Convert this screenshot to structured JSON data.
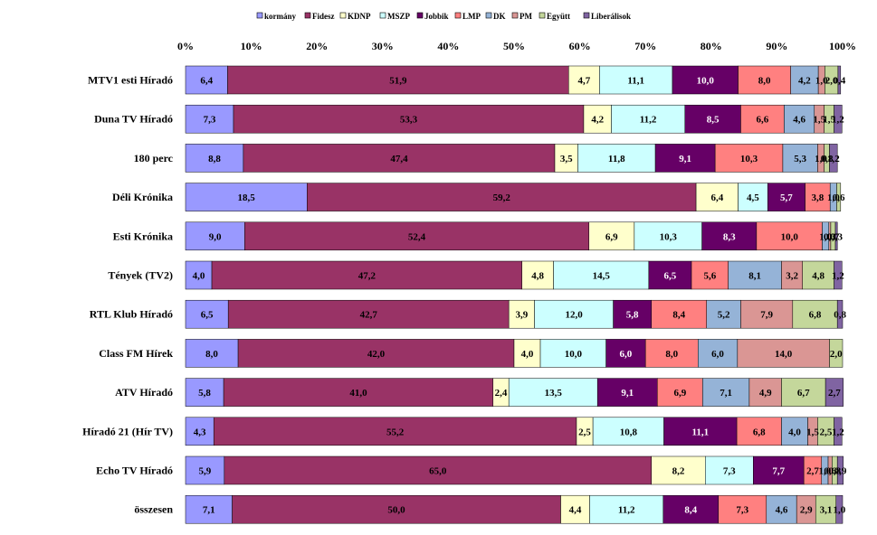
{
  "chart_data": {
    "type": "bar",
    "orientation": "horizontal",
    "stacked": "percent",
    "xlim": [
      0,
      100
    ],
    "tick_labels": [
      "0%",
      "10%",
      "20%",
      "30%",
      "40%",
      "50%",
      "60%",
      "70%",
      "80%",
      "90%",
      "100%"
    ],
    "legend_position": "top",
    "grid": false,
    "categories": [
      "MTV1 esti Híradó",
      "Duna TV Híradó",
      "180 perc",
      "Déli Krónika",
      "Esti Krónika",
      "Tények (TV2)",
      "RTL Klub Híradó",
      "Class FM Hírek",
      "ATV Híradó",
      "Híradó 21 (Hír TV)",
      "Echo TV Híradó",
      "összesen"
    ],
    "series": [
      {
        "name": "kormány",
        "color": "#9999ff",
        "text_color": "#000000",
        "values": [
          6.4,
          7.3,
          8.8,
          18.5,
          9.0,
          4.0,
          6.5,
          8.0,
          5.8,
          4.3,
          5.9,
          7.1
        ],
        "labels": [
          "6,4",
          "7,3",
          "8,8",
          "18,5",
          "9,0",
          "4,0",
          "6,5",
          "8,0",
          "5,8",
          "4,3",
          "5,9",
          "7,1"
        ]
      },
      {
        "name": "Fidesz",
        "color": "#993366",
        "text_color": "#000000",
        "values": [
          51.9,
          53.3,
          47.4,
          59.2,
          52.4,
          47.2,
          42.7,
          42.0,
          41.0,
          55.2,
          65.0,
          50.0
        ],
        "labels": [
          "51,9",
          "53,3",
          "47,4",
          "59,2",
          "52,4",
          "47,2",
          "42,7",
          "42,0",
          "41,0",
          "55,2",
          "65,0",
          "50,0"
        ]
      },
      {
        "name": "KDNP",
        "color": "#ffffcc",
        "text_color": "#000000",
        "values": [
          4.7,
          4.2,
          3.5,
          6.4,
          6.9,
          4.8,
          3.9,
          4.0,
          2.4,
          2.5,
          8.2,
          4.4
        ],
        "labels": [
          "4,7",
          "4,2",
          "3,5",
          "6,4",
          "6,9",
          "4,8",
          "3,9",
          "4,0",
          "2,4",
          "2,5",
          "8,2",
          "4,4"
        ]
      },
      {
        "name": "MSZP",
        "color": "#ccffff",
        "text_color": "#000000",
        "values": [
          11.1,
          11.2,
          11.8,
          4.5,
          10.3,
          14.5,
          12.0,
          10.0,
          13.5,
          10.8,
          7.3,
          11.2
        ],
        "labels": [
          "11,1",
          "11,2",
          "11,8",
          "4,5",
          "10,3",
          "14,5",
          "12,0",
          "10,0",
          "13,5",
          "10,8",
          "7,3",
          "11,2"
        ]
      },
      {
        "name": "Jobbik",
        "color": "#660066",
        "text_color": "#ffffff",
        "values": [
          10.0,
          8.5,
          9.1,
          5.7,
          8.3,
          6.5,
          5.8,
          6.0,
          9.1,
          11.1,
          7.7,
          8.4
        ],
        "labels": [
          "10,0",
          "8,5",
          "9,1",
          "5,7",
          "8,3",
          "6,5",
          "5,8",
          "6,0",
          "9,1",
          "11,1",
          "7,7",
          "8,4"
        ]
      },
      {
        "name": "LMP",
        "color": "#ff8080",
        "text_color": "#000000",
        "values": [
          8.0,
          6.6,
          10.3,
          3.8,
          10.0,
          5.6,
          8.4,
          8.0,
          6.9,
          6.8,
          2.7,
          7.3
        ],
        "labels": [
          "8,0",
          "6,6",
          "10,3",
          "3,8",
          "10,0",
          "5,6",
          "8,4",
          "8,0",
          "6,9",
          "6,8",
          "2,7",
          "7,3"
        ]
      },
      {
        "name": "DK",
        "color": "#95b3d7",
        "text_color": "#000000",
        "values": [
          4.2,
          4.6,
          5.3,
          1.0,
          1.0,
          8.1,
          5.2,
          6.0,
          7.1,
          4.0,
          1.0,
          4.6
        ],
        "labels": [
          "4,2",
          "4,6",
          "5,3",
          "1,0",
          "1,0",
          "8,1",
          "5,2",
          "6,0",
          "7,1",
          "4,0",
          "1,0",
          "4,6"
        ]
      },
      {
        "name": "PM",
        "color": "#da9694",
        "text_color": "#000000",
        "values": [
          1.0,
          1.5,
          1.0,
          0.0,
          0.3,
          3.2,
          7.9,
          14.0,
          4.9,
          1.5,
          0.6,
          2.9
        ],
        "labels": [
          "1,0",
          "1,5",
          "1,0",
          "0,0",
          "0,3",
          "3,2",
          "7,9",
          "14,0",
          "4,9",
          "1,5",
          "0,6",
          "2,9"
        ]
      },
      {
        "name": "Együtt",
        "color": "#c4d79b",
        "text_color": "#000000",
        "values": [
          2.0,
          1.5,
          0.8,
          0.6,
          0.7,
          4.8,
          6.8,
          2.0,
          6.7,
          2.5,
          0.8,
          3.1
        ],
        "labels": [
          "2,0",
          "1,5",
          "0,8",
          "0,6",
          "0,7",
          "4,8",
          "6,8",
          "2,0",
          "6,7",
          "2,5",
          "0,8",
          "3,1"
        ]
      },
      {
        "name": "Liberálisok",
        "color": "#8064a2",
        "text_color": "#000000",
        "values": [
          0.4,
          1.2,
          1.2,
          0.0,
          0.3,
          1.2,
          0.8,
          0.0,
          2.7,
          1.2,
          0.9,
          1.0
        ],
        "labels": [
          "0,4",
          "1,2",
          "1,2",
          "0,0",
          "0,3",
          "1,2",
          "0,8",
          "0,0",
          "2,7",
          "1,2",
          "0,9",
          "1,0"
        ]
      }
    ]
  }
}
